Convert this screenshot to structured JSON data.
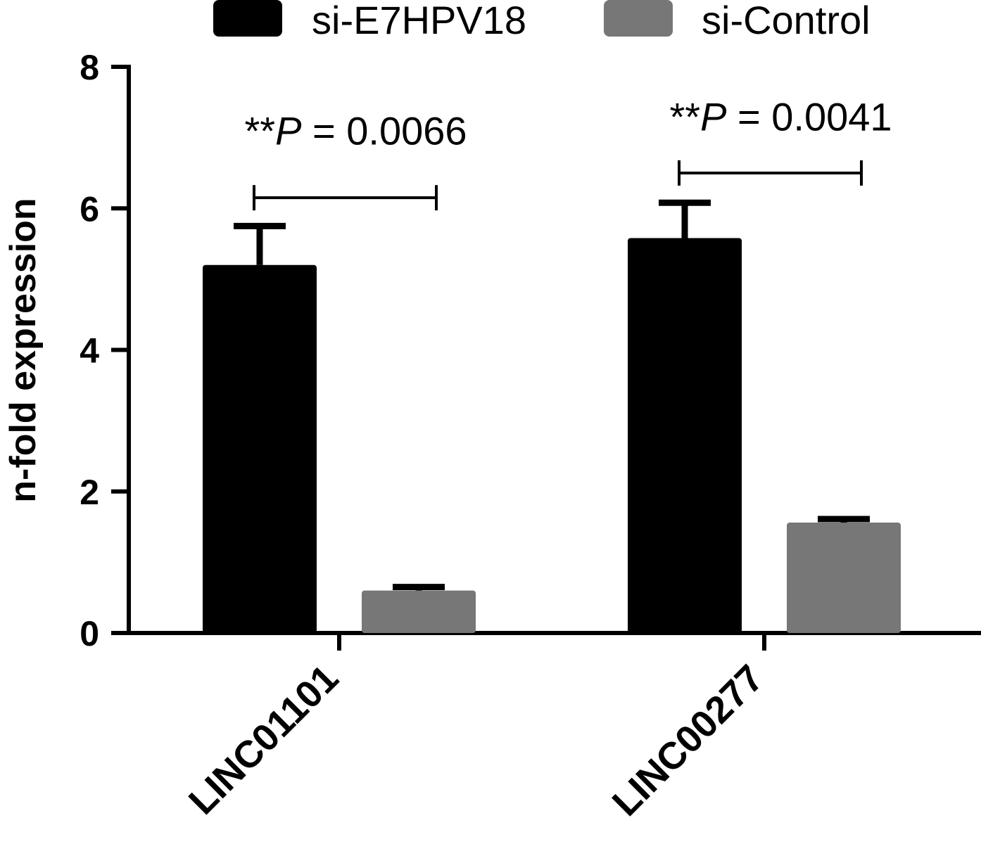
{
  "chart_data": {
    "type": "bar",
    "categories": [
      "LINC01101",
      "LINC00277"
    ],
    "ylabel": "n-fold expression",
    "ylim": [
      0,
      8
    ],
    "yticks": [
      0,
      2,
      4,
      6,
      8
    ],
    "grid": false,
    "legend_position": "top",
    "series": [
      {
        "name": "si-E7HPV18",
        "color": "#000000",
        "values": [
          5.2,
          5.58
        ],
        "errors": [
          0.55,
          0.5
        ]
      },
      {
        "name": "si-Control",
        "color": "#777777",
        "values": [
          0.6,
          1.56
        ],
        "errors": [
          0.05,
          0.05
        ]
      }
    ],
    "annotations": [
      {
        "category_index": 0,
        "stars": "**",
        "p_symbol": "P",
        "rest": " = 0.0066",
        "bracket_y": 6.15,
        "text_y": 7.1
      },
      {
        "category_index": 1,
        "stars": "**",
        "p_symbol": "P",
        "rest": " = 0.0041",
        "bracket_y": 6.5,
        "text_y": 7.3
      }
    ]
  }
}
